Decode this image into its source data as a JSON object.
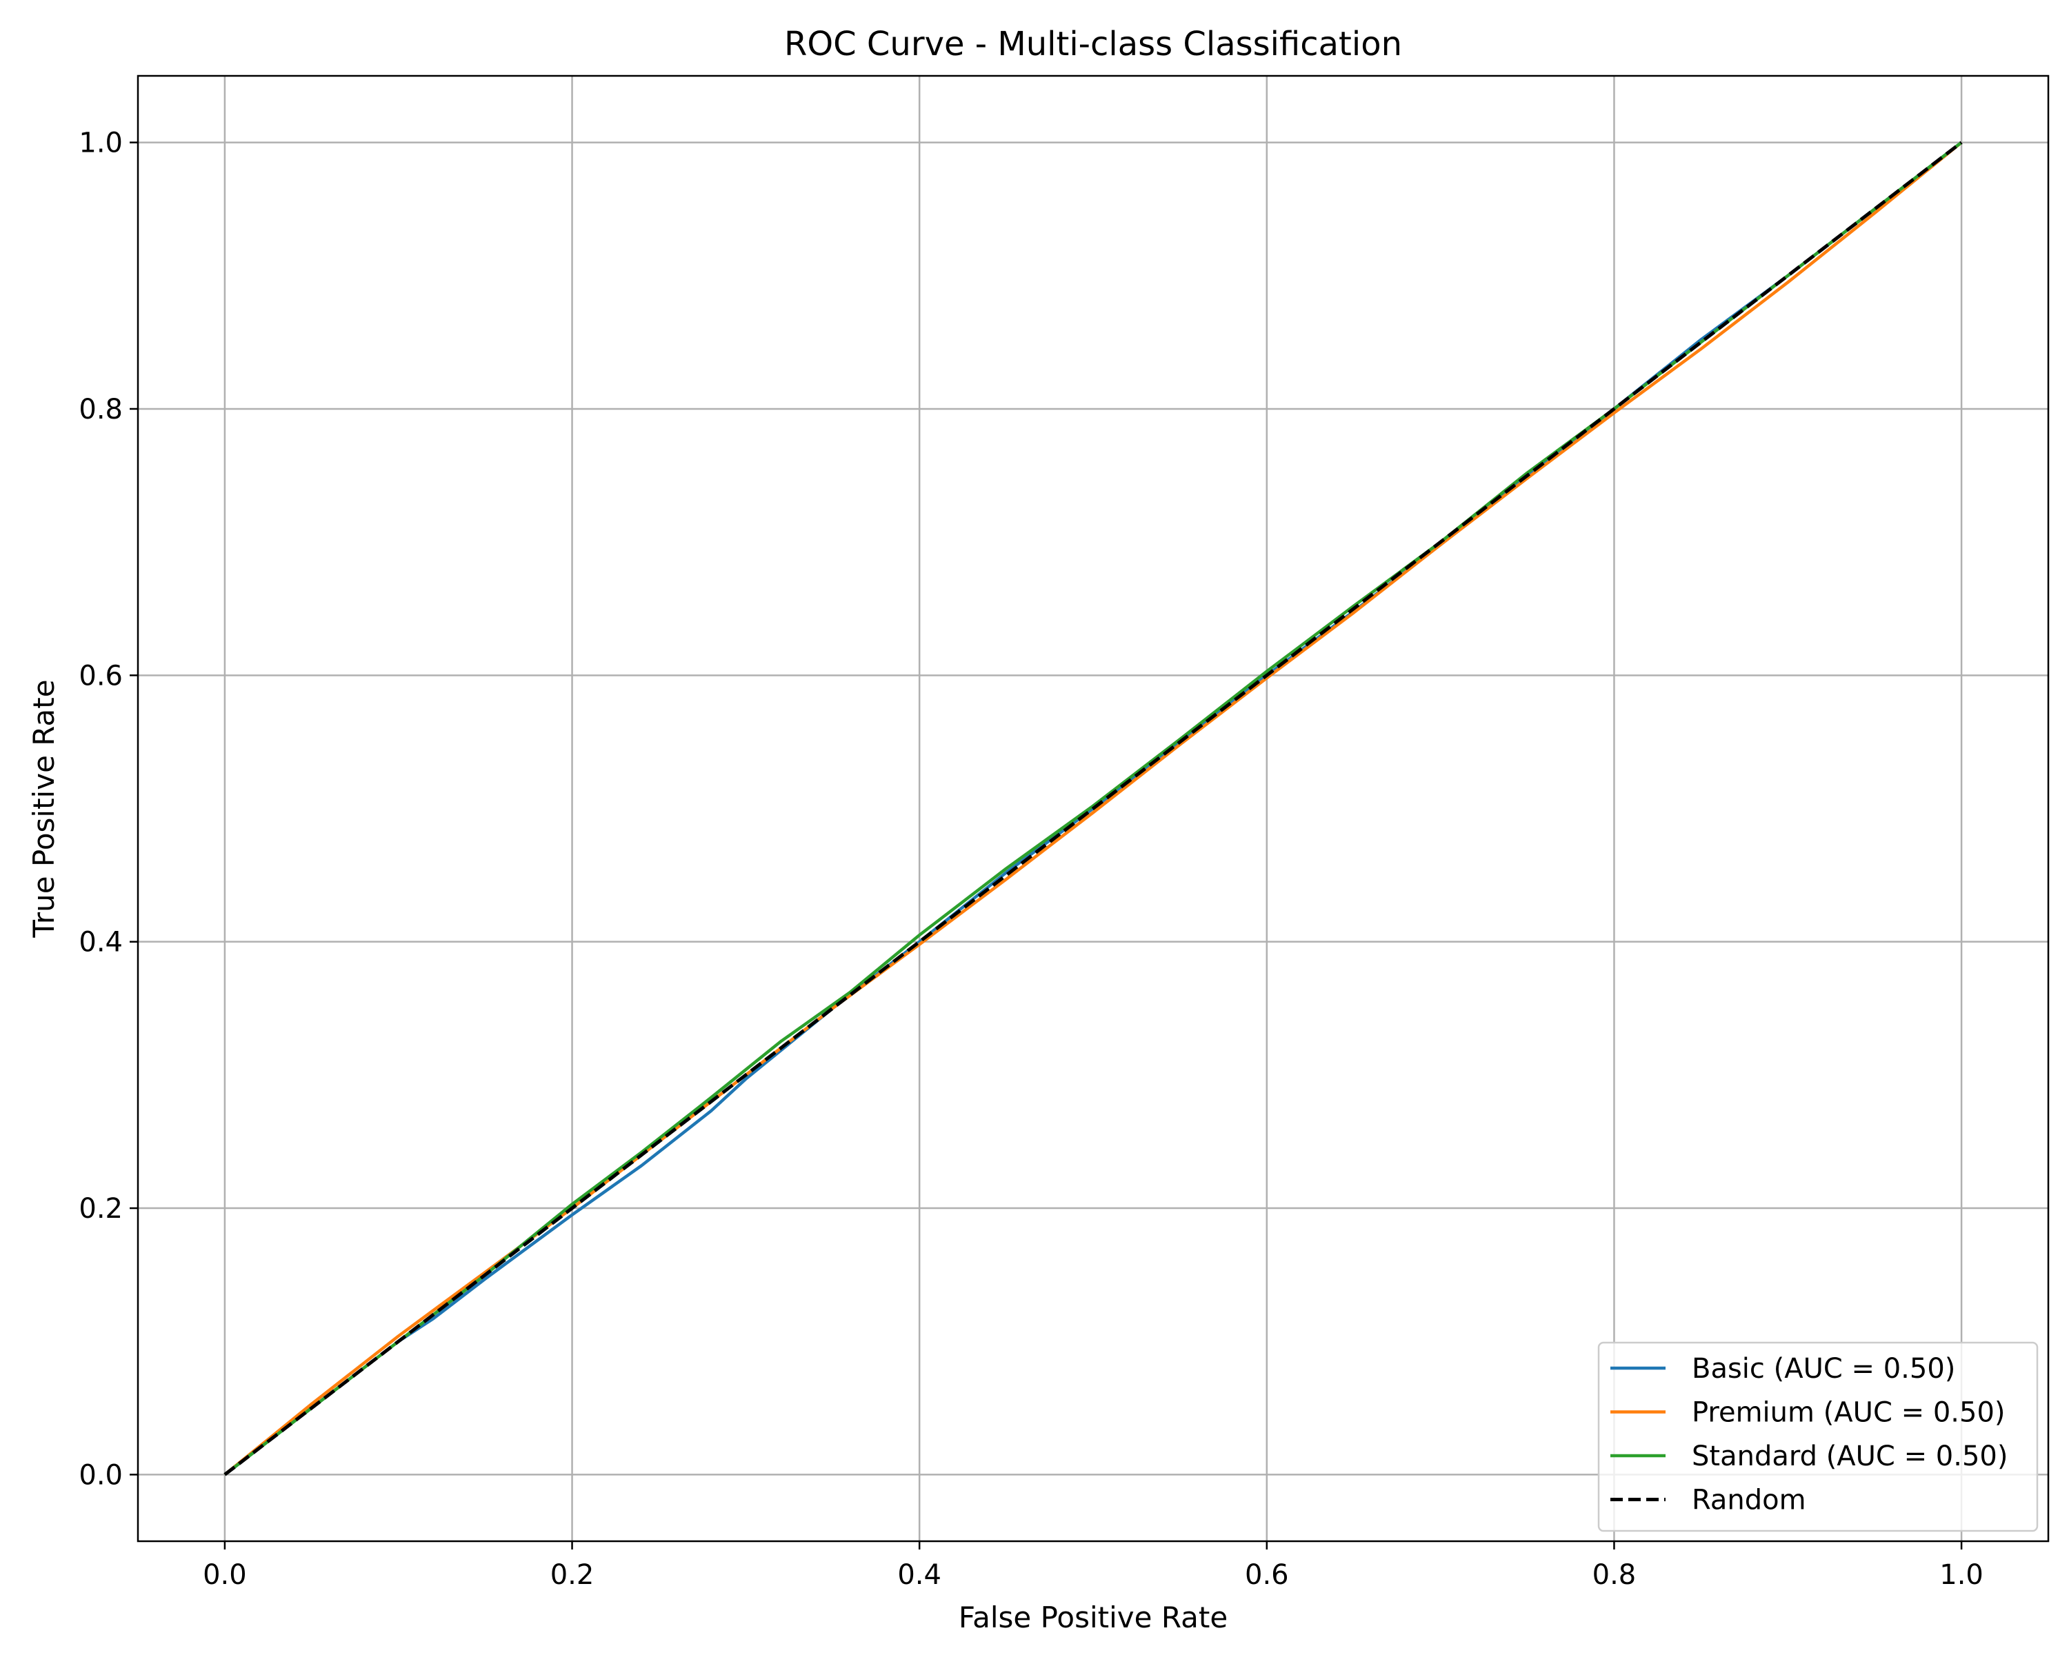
{
  "chart_data": {
    "type": "line",
    "title": "ROC Curve - Multi-class Classification",
    "xlabel": "False Positive Rate",
    "ylabel": "True Positive Rate",
    "xlim": [
      -0.05,
      1.05
    ],
    "ylim": [
      -0.05,
      1.05
    ],
    "xticks": [
      0.0,
      0.2,
      0.4,
      0.6,
      0.8,
      1.0
    ],
    "yticks": [
      0.0,
      0.2,
      0.4,
      0.6,
      0.8,
      1.0
    ],
    "xtick_labels": [
      "0.0",
      "0.2",
      "0.4",
      "0.6",
      "0.8",
      "1.0"
    ],
    "ytick_labels": [
      "0.0",
      "0.2",
      "0.4",
      "0.6",
      "0.8",
      "1.0"
    ],
    "grid": true,
    "legend_position": "lower-right",
    "series": [
      {
        "name": "Basic (AUC = 0.50)",
        "color": "#1f77b4",
        "style": "solid",
        "x": [
          0.0,
          0.05,
          0.1,
          0.12,
          0.15,
          0.2,
          0.24,
          0.28,
          0.3,
          0.35,
          0.4,
          0.45,
          0.5,
          0.55,
          0.6,
          0.65,
          0.7,
          0.75,
          0.8,
          0.85,
          0.9,
          0.95,
          1.0
        ],
        "y": [
          0.0,
          0.05,
          0.1,
          0.117,
          0.147,
          0.195,
          0.232,
          0.273,
          0.297,
          0.35,
          0.4,
          0.452,
          0.5,
          0.55,
          0.6,
          0.648,
          0.698,
          0.75,
          0.8,
          0.852,
          0.9,
          0.95,
          1.0
        ]
      },
      {
        "name": "Premium (AUC = 0.50)",
        "color": "#ff7f0e",
        "style": "solid",
        "x": [
          0.0,
          0.05,
          0.1,
          0.15,
          0.2,
          0.25,
          0.3,
          0.35,
          0.4,
          0.45,
          0.5,
          0.55,
          0.6,
          0.65,
          0.7,
          0.75,
          0.8,
          0.85,
          0.9,
          0.95,
          1.0
        ],
        "y": [
          0.0,
          0.053,
          0.104,
          0.152,
          0.2,
          0.25,
          0.3,
          0.35,
          0.398,
          0.447,
          0.497,
          0.548,
          0.598,
          0.647,
          0.698,
          0.748,
          0.797,
          0.845,
          0.895,
          0.947,
          1.0
        ]
      },
      {
        "name": "Standard (AUC = 0.50)",
        "color": "#2ca02c",
        "style": "solid",
        "x": [
          0.0,
          0.05,
          0.1,
          0.15,
          0.2,
          0.24,
          0.28,
          0.32,
          0.36,
          0.4,
          0.45,
          0.5,
          0.55,
          0.6,
          0.65,
          0.7,
          0.75,
          0.8,
          0.85,
          0.9,
          0.95,
          1.0
        ],
        "y": [
          0.0,
          0.05,
          0.1,
          0.15,
          0.203,
          0.242,
          0.283,
          0.325,
          0.362,
          0.405,
          0.455,
          0.502,
          0.552,
          0.603,
          0.652,
          0.7,
          0.752,
          0.8,
          0.85,
          0.9,
          0.95,
          1.0
        ]
      },
      {
        "name": "Random",
        "color": "#000000",
        "style": "dashed",
        "x": [
          0.0,
          1.0
        ],
        "y": [
          0.0,
          1.0
        ]
      }
    ]
  }
}
